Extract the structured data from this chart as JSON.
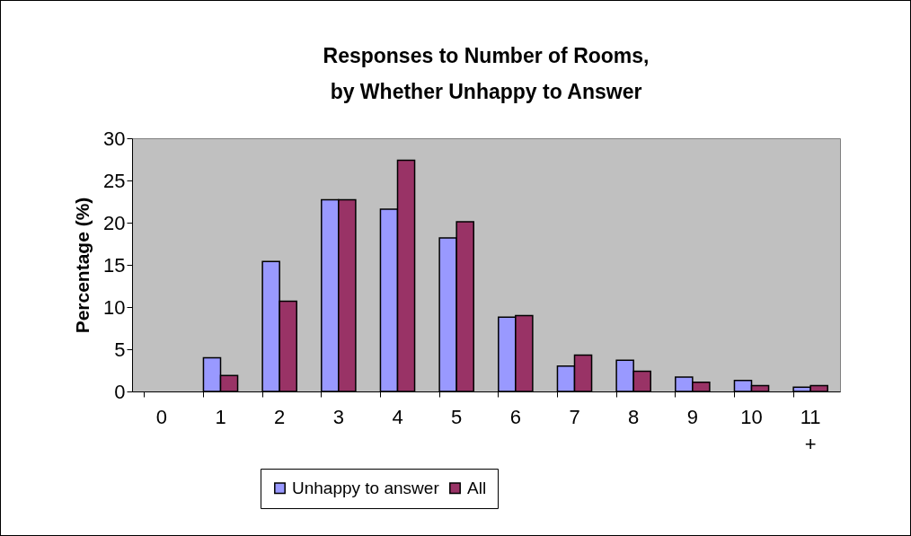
{
  "chart_data": {
    "type": "bar",
    "title": "Responses to Number of Rooms, by Whether Unhappy to Answer",
    "ylabel": "Percentage (%)",
    "categories": [
      "0",
      "1",
      "2",
      "3",
      "4",
      "5",
      "6",
      "7",
      "8",
      "9",
      "10",
      "11 +"
    ],
    "series": [
      {
        "name": "Unhappy to answer",
        "color": "#9999ff",
        "values": [
          null,
          4.0,
          15.4,
          22.7,
          21.6,
          18.2,
          8.8,
          3.0,
          3.7,
          1.7,
          1.3,
          0.5
        ]
      },
      {
        "name": "All",
        "color": "#993366",
        "values": [
          null,
          1.9,
          10.7,
          22.7,
          27.4,
          20.1,
          9.0,
          4.3,
          2.4,
          1.1,
          0.7,
          0.7
        ]
      }
    ],
    "ylim": [
      0,
      30
    ],
    "yticks": [
      0,
      5,
      10,
      15,
      20,
      25,
      30
    ],
    "grid": false,
    "legend": "bottom"
  }
}
